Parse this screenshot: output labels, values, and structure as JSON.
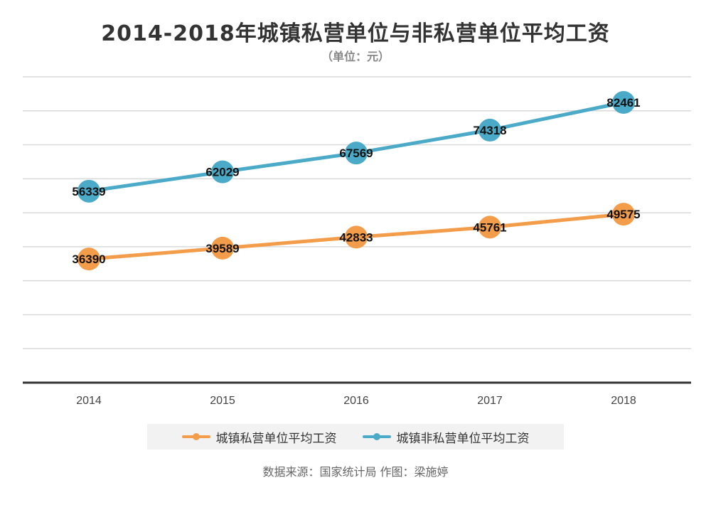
{
  "title": "2014-2018年城镇私营单位与非私营单位平均工资",
  "subtitle": "（单位：元）",
  "source": "数据来源：国家统计局 作图：梁施婷",
  "chart_data": {
    "type": "line",
    "categories": [
      "2014",
      "2015",
      "2016",
      "2017",
      "2018"
    ],
    "series": [
      {
        "name": "城镇私营单位平均工资",
        "values": [
          36390,
          39589,
          42833,
          45761,
          49575
        ],
        "color": "#F39C4A"
      },
      {
        "name": "城镇非私营单位平均工资",
        "values": [
          56339,
          62029,
          67569,
          74318,
          82461
        ],
        "color": "#4BAAC8"
      }
    ],
    "ylim": [
      0,
      90000
    ],
    "grid": true,
    "legend_position": "bottom"
  }
}
